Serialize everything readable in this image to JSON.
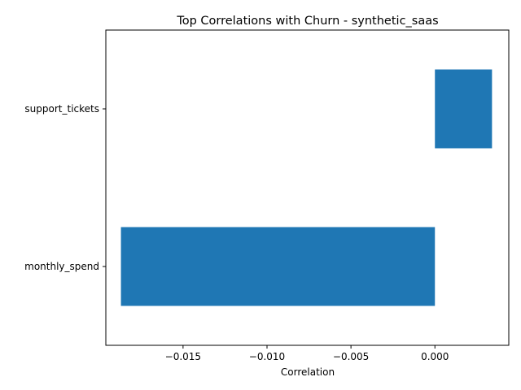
{
  "chart_data": {
    "type": "bar",
    "orientation": "horizontal",
    "title": "Top Correlations with Churn - synthetic_saas",
    "xlabel": "Correlation",
    "ylabel": "",
    "categories": [
      "support_tickets",
      "monthly_spend"
    ],
    "values": [
      0.0034,
      -0.0187
    ],
    "xlim": [
      -0.0196,
      0.0044
    ],
    "xticks": [
      -0.015,
      -0.01,
      -0.005,
      0.0
    ],
    "xtick_labels": [
      "−0.015",
      "−0.010",
      "−0.005",
      "0.000"
    ],
    "grid": false,
    "legend": "none",
    "bar_color": "#1f77b4"
  }
}
